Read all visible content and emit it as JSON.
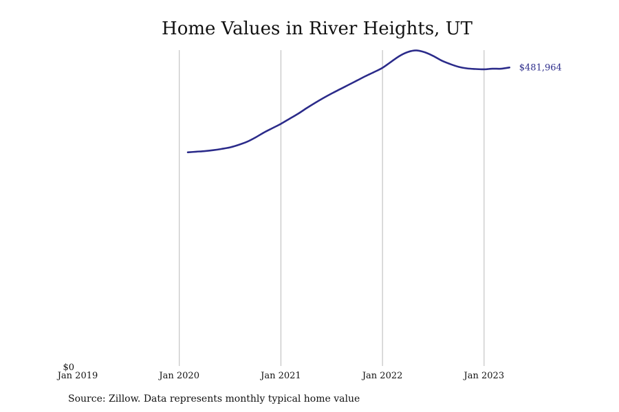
{
  "chart_data": {
    "type": "line",
    "title": "Home Values in River Heights, UT",
    "xlabel": "",
    "ylabel": "",
    "x_ticks": [
      "Jan 2019",
      "Jan 2020",
      "Jan 2021",
      "Jan 2022",
      "Jan 2023"
    ],
    "y_ticks": [
      "$0"
    ],
    "xlim": [
      "2019-01",
      "2023-08"
    ],
    "ylim": [
      0,
      510000
    ],
    "grid": "vertical",
    "legend": "none",
    "line_color": "#2b2b8a",
    "grid_color": "#b8b8b8",
    "end_label": "$481,964",
    "series": [
      {
        "points": [
          {
            "x": "2020-02",
            "y": 345000
          },
          {
            "x": "2020-03",
            "y": 346000
          },
          {
            "x": "2020-04",
            "y": 347000
          },
          {
            "x": "2020-05",
            "y": 348500
          },
          {
            "x": "2020-06",
            "y": 350500
          },
          {
            "x": "2020-07",
            "y": 353000
          },
          {
            "x": "2020-08",
            "y": 357000
          },
          {
            "x": "2020-09",
            "y": 362000
          },
          {
            "x": "2020-10",
            "y": 369000
          },
          {
            "x": "2020-11",
            "y": 377000
          },
          {
            "x": "2020-12",
            "y": 384000
          },
          {
            "x": "2021-01",
            "y": 391000
          },
          {
            "x": "2021-02",
            "y": 399000
          },
          {
            "x": "2021-03",
            "y": 407000
          },
          {
            "x": "2021-04",
            "y": 416000
          },
          {
            "x": "2021-05",
            "y": 424500
          },
          {
            "x": "2021-06",
            "y": 432500
          },
          {
            "x": "2021-07",
            "y": 440000
          },
          {
            "x": "2021-08",
            "y": 447000
          },
          {
            "x": "2021-09",
            "y": 454000
          },
          {
            "x": "2021-10",
            "y": 461000
          },
          {
            "x": "2021-11",
            "y": 468000
          },
          {
            "x": "2021-12",
            "y": 474500
          },
          {
            "x": "2022-01",
            "y": 481500
          },
          {
            "x": "2022-02",
            "y": 491000
          },
          {
            "x": "2022-03",
            "y": 500500
          },
          {
            "x": "2022-04",
            "y": 507000
          },
          {
            "x": "2022-05",
            "y": 509500
          },
          {
            "x": "2022-06",
            "y": 506500
          },
          {
            "x": "2022-07",
            "y": 500500
          },
          {
            "x": "2022-08",
            "y": 493000
          },
          {
            "x": "2022-09",
            "y": 487500
          },
          {
            "x": "2022-10",
            "y": 483000
          },
          {
            "x": "2022-11",
            "y": 480500
          },
          {
            "x": "2022-12",
            "y": 479500
          },
          {
            "x": "2023-01",
            "y": 479000
          },
          {
            "x": "2023-02",
            "y": 480000
          },
          {
            "x": "2023-03",
            "y": 480000
          },
          {
            "x": "2023-04",
            "y": 481964
          }
        ]
      }
    ]
  },
  "footer": {
    "source": "Source: Zillow. Data represents monthly typical home value"
  }
}
